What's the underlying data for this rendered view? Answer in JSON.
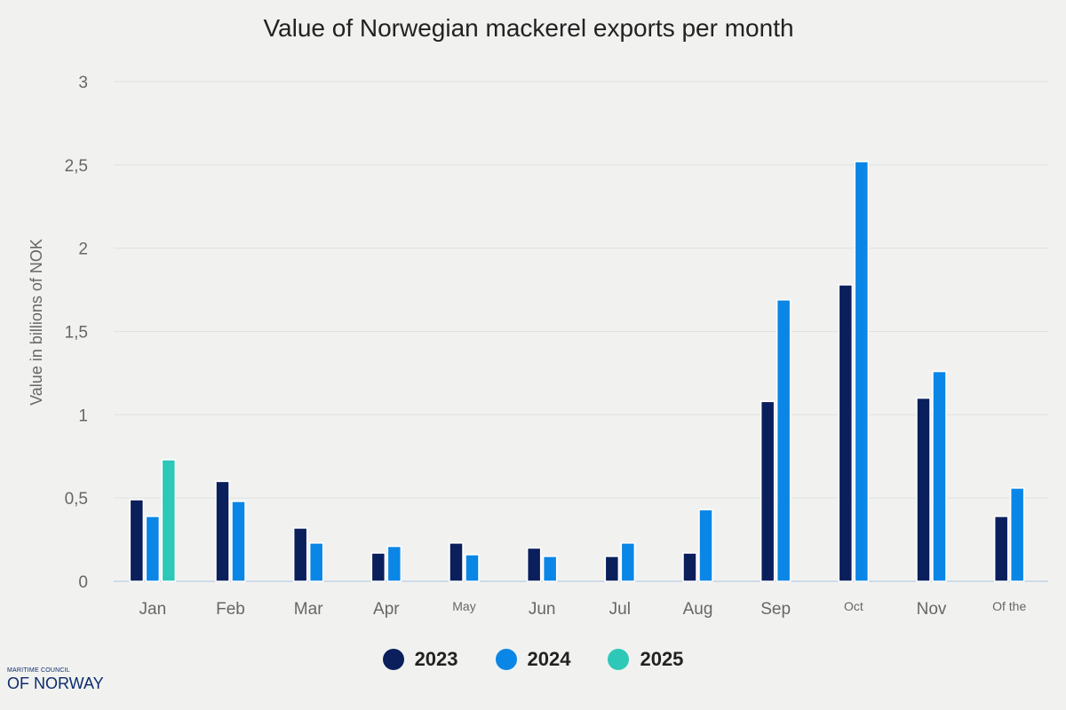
{
  "chart_data": {
    "type": "bar",
    "title": "Value of Norwegian mackerel exports per month",
    "ylabel": "Value in billions of NOK",
    "xlabel": "",
    "ylim": [
      0,
      3
    ],
    "yticks": [
      "0",
      "0,5",
      "1",
      "1,5",
      "2",
      "2,5",
      "3"
    ],
    "grid": true,
    "legend_position": "bottom",
    "categories": [
      "Jan",
      "Feb",
      "Mar",
      "Apr",
      "May",
      "Jun",
      "Jul",
      "Aug",
      "Sep",
      "Oct",
      "Nov",
      "Of the"
    ],
    "series": [
      {
        "name": "2023",
        "color": "#0a1f5c",
        "values": [
          0.49,
          0.6,
          0.32,
          0.17,
          0.23,
          0.2,
          0.15,
          0.17,
          1.08,
          1.78,
          1.1,
          0.39
        ]
      },
      {
        "name": "2024",
        "color": "#0a86e6",
        "values": [
          0.39,
          0.48,
          0.23,
          0.21,
          0.16,
          0.15,
          0.23,
          0.43,
          1.69,
          2.52,
          1.26,
          0.56
        ]
      },
      {
        "name": "2025",
        "color": "#2ec8b8",
        "values": [
          0.73,
          null,
          null,
          null,
          null,
          null,
          null,
          null,
          null,
          null,
          null,
          null
        ]
      }
    ]
  },
  "logo": {
    "top": "MARITIME COUNCIL",
    "bottom": "OF NORWAY"
  }
}
